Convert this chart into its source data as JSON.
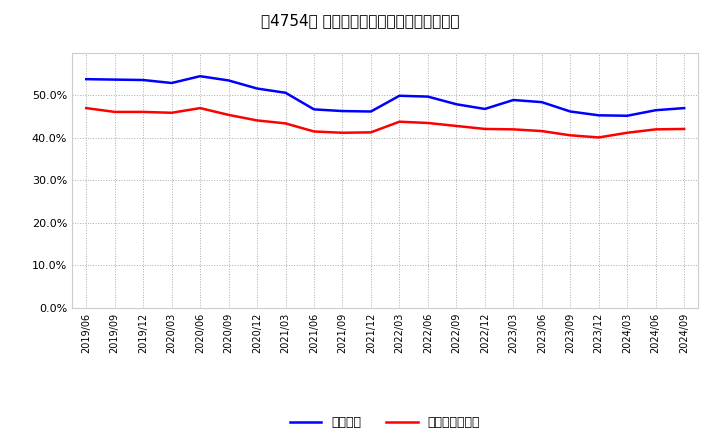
{
  "title": "［4754］ 固定比率、固定長期適合率の推移",
  "blue_label": "固定比率",
  "red_label": "固定長期適合率",
  "blue_color": "#0000ff",
  "red_color": "#ff0000",
  "background_color": "#ffffff",
  "grid_color": "#aaaaaa",
  "ylim": [
    0.0,
    0.6
  ],
  "yticks": [
    0.0,
    0.1,
    0.2,
    0.3,
    0.4,
    0.5
  ],
  "x_labels": [
    "2019/06",
    "2019/09",
    "2019/12",
    "2020/03",
    "2020/06",
    "2020/09",
    "2020/12",
    "2021/03",
    "2021/06",
    "2021/09",
    "2021/12",
    "2022/03",
    "2022/06",
    "2022/09",
    "2022/12",
    "2023/03",
    "2023/06",
    "2023/09",
    "2023/12",
    "2024/03",
    "2024/06",
    "2024/09"
  ],
  "blue_values": [
    0.538,
    0.537,
    0.536,
    0.529,
    0.545,
    0.535,
    0.516,
    0.506,
    0.467,
    0.463,
    0.462,
    0.499,
    0.497,
    0.479,
    0.468,
    0.489,
    0.484,
    0.462,
    0.453,
    0.452,
    0.465,
    0.47
  ],
  "red_values": [
    0.47,
    0.461,
    0.461,
    0.459,
    0.47,
    0.454,
    0.441,
    0.434,
    0.415,
    0.412,
    0.413,
    0.438,
    0.435,
    0.428,
    0.421,
    0.42,
    0.416,
    0.406,
    0.401,
    0.412,
    0.42,
    0.421
  ]
}
